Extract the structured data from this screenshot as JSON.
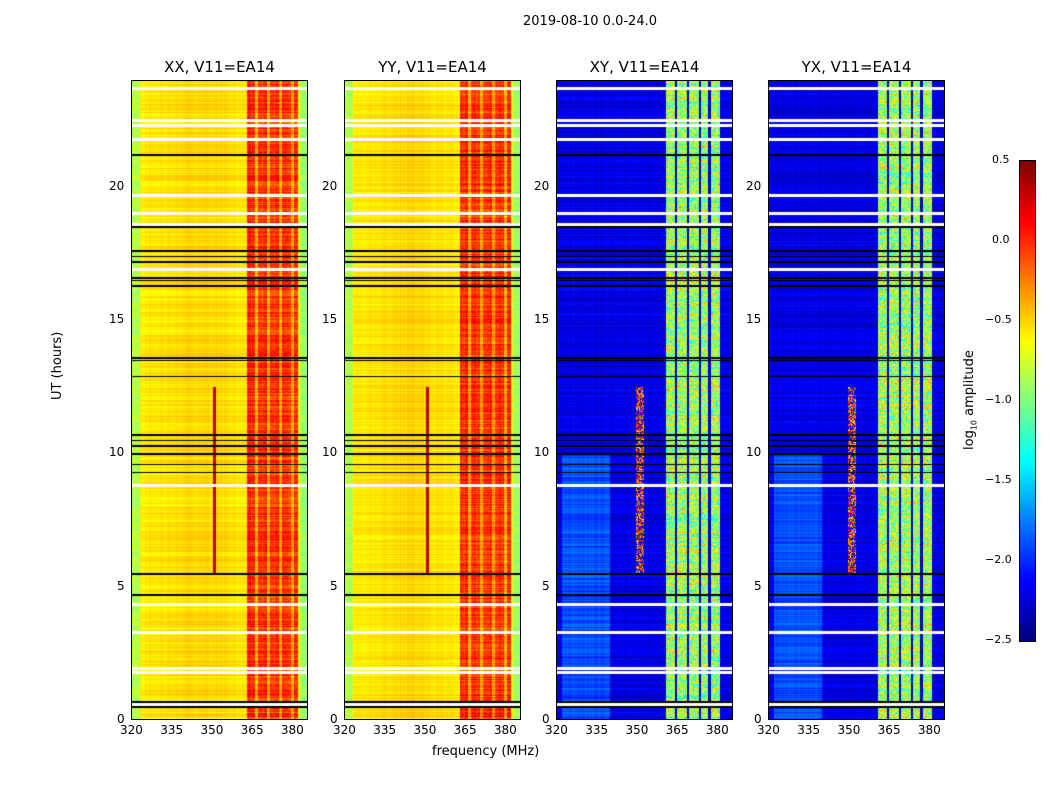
{
  "chart_data": {
    "type": "heatmap",
    "suptitle": "2019-08-10 0.0-24.0",
    "xlabel": "frequency (MHz)",
    "ylabel": "UT (hours)",
    "xlim": [
      320,
      386
    ],
    "ylim": [
      0,
      24
    ],
    "xticks": [
      "320",
      "335",
      "350",
      "365",
      "380"
    ],
    "yticks": [
      "0",
      "5",
      "10",
      "15",
      "20"
    ],
    "panels": [
      {
        "title": "XX, V11=EA14",
        "kind": "parallel"
      },
      {
        "title": "YY, V11=EA14",
        "kind": "parallel"
      },
      {
        "title": "XY, V11=EA14",
        "kind": "cross"
      },
      {
        "title": "YX, V11=EA14",
        "kind": "cross"
      }
    ],
    "parallel_level": {
      "background": -0.5,
      "band_363_382_MHz": 0.0
    },
    "cross_level": {
      "background": -2.2,
      "band_361_381_MHz": -0.9
    },
    "rfi": {
      "freq_MHz": 351,
      "ut_range": [
        5.5,
        12.5
      ]
    },
    "flagged_white_ut": [
      0.6,
      1.8,
      1.95,
      3.3,
      4.35,
      8.8,
      16.9,
      18.6,
      19.0,
      19.7,
      21.8,
      22.3,
      22.5,
      23.7
    ],
    "dark_rows_ut": [
      0.5,
      0.7,
      4.7,
      5.5,
      9.3,
      9.6,
      10.0,
      10.3,
      10.5,
      10.7,
      12.9,
      13.5,
      13.6,
      16.3,
      16.5,
      16.6,
      17.2,
      17.4,
      17.6,
      18.5,
      21.2
    ],
    "colorbar": {
      "label": "log10 amplitude",
      "label_main": "log",
      "label_sub": "10",
      "label_rest": " amplitude",
      "range": [
        -2.5,
        0.5
      ],
      "ticks": [
        "0.5",
        "0.0",
        "−0.5",
        "−1.0",
        "−1.5",
        "−2.0",
        "−2.5"
      ],
      "colormap": "jet"
    }
  }
}
